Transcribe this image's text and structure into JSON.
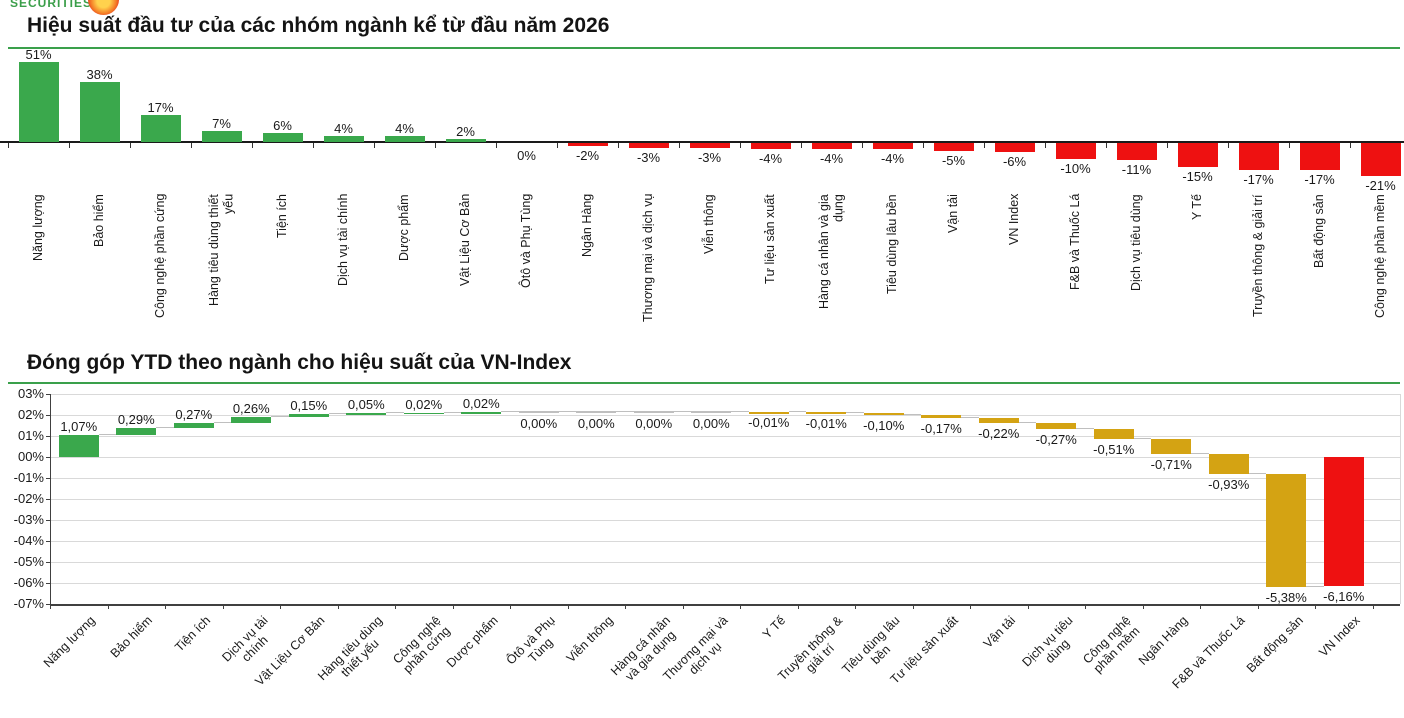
{
  "header": {
    "logo_text": "SECURITIES",
    "brand_green": "#3a9e49"
  },
  "chart_data": [
    {
      "type": "bar",
      "title": "Hiệu suất đầu tư của các nhóm ngành kể từ đầu năm 2026",
      "categories": [
        "Năng lượng",
        "Bảo hiểm",
        "Công nghệ phần cứng",
        "Hàng tiêu dùng thiết\nyếu",
        "Tiện ích",
        "Dịch vụ tài chính",
        "Dược phẩm",
        "Vật Liệu Cơ Bản",
        "Ôtô và Phụ Tùng",
        "Ngân Hàng",
        "Thương mại và dịch vụ",
        "Viễn thông",
        "Tư liệu sản xuất",
        "Hàng cá nhân và gia\ndụng",
        "Tiêu dùng lâu bền",
        "Vận tải",
        "VN Index",
        "F&B và Thuốc Lá",
        "Dịch vụ tiêu dùng",
        "Y Tế",
        "Truyền thông & giải trí",
        "Bất động sản",
        "Công nghệ phần mềm"
      ],
      "values": [
        51,
        38,
        17,
        7,
        6,
        4,
        4,
        2,
        0,
        -2,
        -3,
        -3,
        -4,
        -4,
        -4,
        -5,
        -6,
        -10,
        -11,
        -15,
        -17,
        -17,
        -21
      ],
      "value_labels": [
        "51%",
        "38%",
        "17%",
        "7%",
        "6%",
        "4%",
        "4%",
        "2%",
        "0%",
        "-2%",
        "-3%",
        "-3%",
        "-4%",
        "-4%",
        "-4%",
        "-5%",
        "-6%",
        "-10%",
        "-11%",
        "-15%",
        "-17%",
        "-17%",
        "-21%"
      ],
      "ylim": [
        -21,
        51
      ],
      "grid": false,
      "positive_color": "#3aa84c",
      "negative_color": "#ee1111",
      "axis_color": "#1a1a1a"
    },
    {
      "type": "waterfall",
      "title": "Đóng góp YTD theo ngành cho hiệu suất của VN-Index",
      "categories": [
        "Năng lượng",
        "Bảo hiểm",
        "Tiện ích",
        "Dịch vụ tài\nchính",
        "Vật Liệu Cơ Bản",
        "Hàng tiêu dùng\nthiết yếu",
        "Công nghệ\nphần cứng",
        "Dược phẩm",
        "Ôtô và Phụ\nTùng",
        "Viễn thông",
        "Hàng cá nhân\nvà gia dụng",
        "Thương mại và\ndịch vụ",
        "Y Tế",
        "Truyền thông &\ngiải trí",
        "Tiêu dùng lâu\nbền",
        "Tư liệu sản xuất",
        "Vận tải",
        "Dịch vụ tiêu\ndùng",
        "Công nghệ\nphần mềm",
        "Ngân Hàng",
        "F&B và Thuốc Lá",
        "Bất động sản",
        "VN Index"
      ],
      "values": [
        1.07,
        0.29,
        0.27,
        0.26,
        0.15,
        0.05,
        0.02,
        0.02,
        0.0,
        0.0,
        0.0,
        0.0,
        -0.01,
        -0.01,
        -0.1,
        -0.17,
        -0.22,
        -0.27,
        -0.51,
        -0.71,
        -0.93,
        -5.38,
        -6.16
      ],
      "value_labels": [
        "1,07%",
        "0,29%",
        "0,27%",
        "0,26%",
        "0,15%",
        "0,05%",
        "0,02%",
        "0,02%",
        "0,00%",
        "0,00%",
        "0,00%",
        "0,00%",
        "-0,01%",
        "-0,01%",
        "-0,10%",
        "-0,17%",
        "-0,22%",
        "-0,27%",
        "-0,51%",
        "-0,71%",
        "-0,93%",
        "-5,38%",
        "-6,16%"
      ],
      "total_index": 22,
      "y_ticks": [
        "03%",
        "02%",
        "01%",
        "00%",
        "-01%",
        "-02%",
        "-03%",
        "-04%",
        "-05%",
        "-06%",
        "-07%"
      ],
      "y_tick_values": [
        3,
        2,
        1,
        0,
        -1,
        -2,
        -3,
        -4,
        -5,
        -6,
        -7
      ],
      "ylim": [
        -7,
        3
      ],
      "grid": true,
      "legend": "none",
      "positive_color": "#3aa84c",
      "negative_color": "#d4a313",
      "total_color": "#ee1111",
      "zero_bar_color": "#bfbfbf",
      "grid_color": "#d9d9d9",
      "axis_color": "#404040"
    }
  ]
}
